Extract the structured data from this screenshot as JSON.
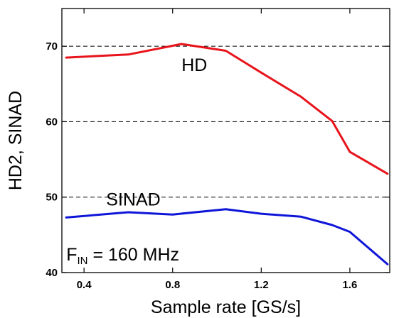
{
  "chart_data": {
    "type": "line",
    "xlabel": "Sample rate [GS/s]",
    "ylabel": "HD2, SINAD",
    "xlim": [
      0.3,
      1.78
    ],
    "ylim": [
      40,
      75
    ],
    "xticks": [
      0.4,
      0.8,
      1.2,
      1.6
    ],
    "xtick_labels": [
      "0.4",
      "0.8",
      "1.2",
      "1.6"
    ],
    "yticks": [
      40,
      50,
      60,
      70
    ],
    "ytick_labels": [
      "40",
      "50",
      "60",
      "70"
    ],
    "grid": "horizontal dashed at 50, 60, 70",
    "series": [
      {
        "name": "HD",
        "color": "#e8141b",
        "x": [
          0.32,
          0.6,
          0.84,
          1.04,
          1.2,
          1.38,
          1.52,
          1.6,
          1.77
        ],
        "y": [
          68.5,
          68.9,
          70.3,
          69.4,
          66.5,
          63.3,
          60.1,
          56.0,
          53.1
        ]
      },
      {
        "name": "SINAD",
        "color": "#0f16d8",
        "x": [
          0.32,
          0.6,
          0.8,
          1.04,
          1.2,
          1.38,
          1.52,
          1.6,
          1.77
        ],
        "y": [
          47.3,
          48.0,
          47.7,
          48.4,
          47.8,
          47.4,
          46.3,
          45.4,
          41.1
        ]
      }
    ],
    "annotations": [
      {
        "id": "hd",
        "text": "HD",
        "x": 0.84,
        "y": 66.7
      },
      {
        "id": "sinad",
        "text": "SINAD",
        "x": 0.5,
        "y": 48.9
      },
      {
        "id": "fin",
        "text_main": "F",
        "text_sub": "IN",
        "text_rest": " = 160 MHz",
        "x": 0.32,
        "y": 41.6
      }
    ]
  }
}
